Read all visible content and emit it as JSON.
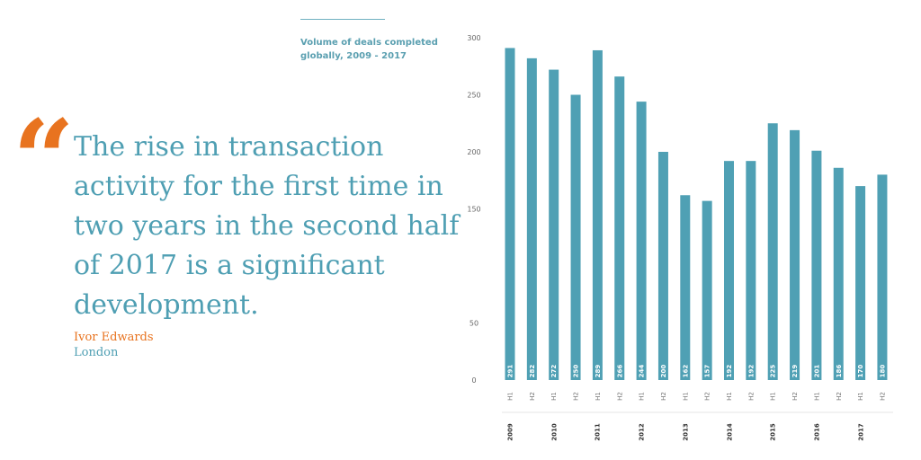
{
  "quote": {
    "mark": "“",
    "text": "The rise in transaction activity for the first time in two years in the second half of 2017 is a significant development.",
    "author": "Ivor Edwards",
    "location": "London"
  },
  "colors": {
    "bar": "#4fa0b4",
    "accent": "#e8731f",
    "text_blue": "#4f9fb3"
  },
  "chart_data": {
    "type": "bar",
    "title": "Volume of deals completed globally, 2009 - 2017",
    "categories": [
      "H1",
      "H2",
      "H1",
      "H2",
      "H1",
      "H2",
      "H1",
      "H2",
      "H1",
      "H2",
      "H1",
      "H2",
      "H1",
      "H2",
      "H1",
      "H2",
      "H1",
      "H2"
    ],
    "years": [
      "2009",
      "2010",
      "2011",
      "2012",
      "2013",
      "2014",
      "2015",
      "2016",
      "2017"
    ],
    "values": [
      291,
      282,
      272,
      250,
      289,
      266,
      244,
      200,
      162,
      157,
      192,
      192,
      225,
      219,
      201,
      186,
      170,
      180
    ],
    "yticks": [
      0,
      50,
      150,
      200,
      250,
      300
    ],
    "ylim": [
      0,
      300
    ],
    "xlabel": "",
    "ylabel": "",
    "grid": false,
    "legend": "none"
  }
}
